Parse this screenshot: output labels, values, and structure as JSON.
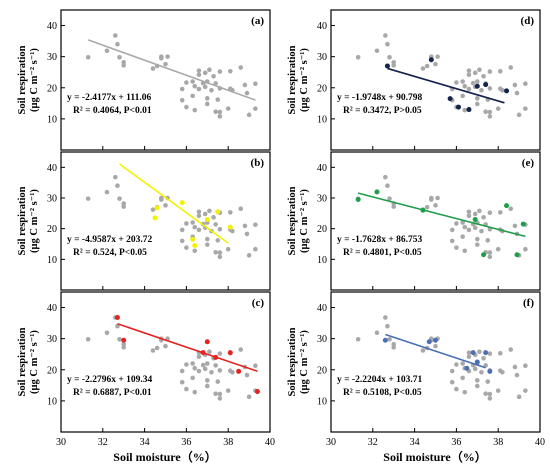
{
  "figure": {
    "x_axis_label": "Soil moisture（%）",
    "y_axis_label_line1": "Soil respiration",
    "y_axis_label_line2": "(μg C m⁻² s⁻¹)",
    "x_ticks": [
      "30",
      "32",
      "34",
      "36",
      "38",
      "40"
    ],
    "y_ticks": [
      "10",
      "20",
      "30",
      "40"
    ]
  },
  "chart_data": [
    {
      "type": "scatter",
      "panel": "(a)",
      "xlim": [
        30,
        40
      ],
      "ylim": [
        0,
        45
      ],
      "xlabel": "",
      "ylabel": "Soil respiration (μg C m⁻² s⁻¹)",
      "highlight_color": "#a9a9a9",
      "highlight_points": [],
      "fit": {
        "slope": -2.4177,
        "intercept": 111.06,
        "x_range": [
          31.3,
          39.3
        ],
        "color": "#a9a9a9"
      },
      "equation": "y = -2.4177x + 111.06",
      "r2_text": "R² = 0.4064, P<0.01"
    },
    {
      "type": "scatter",
      "panel": "(b)",
      "xlim": [
        30,
        40
      ],
      "ylim": [
        0,
        45
      ],
      "xlabel": "",
      "ylabel": "Soil respiration (μg C m⁻² s⁻¹)",
      "highlight_color": "#f2f200",
      "highlight_points": [
        [
          34.5,
          23.5
        ],
        [
          34.6,
          26.8
        ],
        [
          35.8,
          28.5
        ],
        [
          36.3,
          16.5
        ],
        [
          36.4,
          14.5
        ],
        [
          37.0,
          23.0
        ],
        [
          37.5,
          25.5
        ],
        [
          38.1,
          20.5
        ]
      ],
      "fit": {
        "slope": -4.9587,
        "intercept": 203.72,
        "x_range": [
          32.8,
          38.0
        ],
        "color": "#f2f200"
      },
      "equation": "y = -4.9587x + 203.72",
      "r2_text": "R² = 0.524, P<0.05"
    },
    {
      "type": "scatter",
      "panel": "(c)",
      "xlim": [
        30,
        40
      ],
      "ylim": [
        0,
        45
      ],
      "xlabel": "Soil moisture（%）",
      "ylabel": "Soil respiration (μg C m⁻² s⁻¹)",
      "highlight_color": "#e8211f",
      "highlight_points": [
        [
          32.7,
          36.8
        ],
        [
          33.0,
          29.5
        ],
        [
          36.8,
          25.5
        ],
        [
          37.0,
          29.0
        ],
        [
          37.4,
          24.0
        ],
        [
          38.1,
          25.5
        ],
        [
          38.5,
          19.5
        ],
        [
          39.4,
          13.0
        ]
      ],
      "fit": {
        "slope": -2.2796,
        "intercept": 109.34,
        "x_range": [
          32.7,
          39.4
        ],
        "color": "#e8211f"
      },
      "equation": "y = -2.2796x + 109.34",
      "r2_text": "R² = 0.6887, P<0.01"
    },
    {
      "type": "scatter",
      "panel": "(d)",
      "xlim": [
        30,
        40
      ],
      "ylim": [
        0,
        45
      ],
      "xlabel": "",
      "ylabel": "Soil respiration (μg C m⁻² s⁻¹)",
      "highlight_color": "#14224e",
      "highlight_points": [
        [
          32.7,
          27.0
        ],
        [
          34.8,
          29.0
        ],
        [
          35.7,
          16.5
        ],
        [
          36.1,
          13.8
        ],
        [
          36.6,
          13.0
        ],
        [
          37.0,
          20.5
        ],
        [
          37.4,
          21.0
        ],
        [
          38.4,
          19.0
        ]
      ],
      "fit": {
        "slope": -1.9748,
        "intercept": 90.798,
        "x_range": [
          32.7,
          38.3
        ],
        "color": "#14224e"
      },
      "equation": "y = -1.9748x + 90.798",
      "r2_text": "R² = 0.3472, P>0.05"
    },
    {
      "type": "scatter",
      "panel": "(e)",
      "xlim": [
        30,
        40
      ],
      "ylim": [
        0,
        45
      ],
      "xlabel": "",
      "ylabel": "Soil respiration (μg C m⁻² s⁻¹)",
      "highlight_color": "#1f9e4a",
      "highlight_points": [
        [
          31.3,
          29.5
        ],
        [
          32.2,
          32.0
        ],
        [
          34.4,
          26.0
        ],
        [
          36.9,
          23.0
        ],
        [
          37.3,
          11.5
        ],
        [
          38.4,
          27.5
        ],
        [
          38.9,
          11.5
        ],
        [
          39.2,
          21.5
        ]
      ],
      "fit": {
        "slope": -1.7628,
        "intercept": 86.753,
        "x_range": [
          31.3,
          39.3
        ],
        "color": "#1f9e4a"
      },
      "equation": "y = -1.7628x + 86.753",
      "r2_text": "R² = 0.4801, P<0.05"
    },
    {
      "type": "scatter",
      "panel": "(f)",
      "xlim": [
        30,
        40
      ],
      "ylim": [
        0,
        45
      ],
      "xlabel": "Soil moisture（%）",
      "ylabel": "Soil respiration (μg C m⁻² s⁻¹)",
      "highlight_color": "#4a6fb5",
      "highlight_points": [
        [
          32.6,
          29.5
        ],
        [
          34.7,
          29.0
        ],
        [
          35.0,
          29.5
        ],
        [
          36.5,
          20.5
        ],
        [
          36.8,
          25.5
        ],
        [
          37.0,
          22.5
        ],
        [
          37.4,
          25.5
        ],
        [
          37.6,
          19.5
        ]
      ],
      "fit": {
        "slope": -2.2204,
        "intercept": 103.71,
        "x_range": [
          32.6,
          37.4
        ],
        "color": "#4a6fb5"
      },
      "equation": "y = -2.2204x + 103.71",
      "r2_text": "R² = 0.5108, P<0.05"
    }
  ],
  "background_points": [
    [
      31.3,
      29.8
    ],
    [
      32.2,
      31.9
    ],
    [
      32.6,
      36.8
    ],
    [
      32.7,
      34.0
    ],
    [
      32.8,
      29.8
    ],
    [
      33.0,
      28.2
    ],
    [
      33.0,
      27.2
    ],
    [
      34.4,
      26.2
    ],
    [
      34.6,
      27.0
    ],
    [
      34.8,
      29.5
    ],
    [
      34.8,
      30.0
    ],
    [
      35.0,
      27.6
    ],
    [
      35.1,
      30.0
    ],
    [
      35.8,
      19.6
    ],
    [
      35.8,
      16.0
    ],
    [
      36.0,
      13.8
    ],
    [
      36.0,
      21.7
    ],
    [
      36.3,
      22.0
    ],
    [
      36.3,
      17.4
    ],
    [
      36.4,
      12.8
    ],
    [
      36.4,
      20.5
    ],
    [
      36.6,
      25.5
    ],
    [
      36.6,
      19.6
    ],
    [
      36.6,
      24.2
    ],
    [
      36.8,
      21.5
    ],
    [
      36.9,
      20.3
    ],
    [
      36.9,
      24.8
    ],
    [
      37.0,
      22.0
    ],
    [
      37.0,
      14.8
    ],
    [
      37.0,
      16.6
    ],
    [
      37.1,
      25.8
    ],
    [
      37.2,
      19.2
    ],
    [
      37.3,
      23.7
    ],
    [
      37.4,
      21.4
    ],
    [
      37.4,
      12.3
    ],
    [
      37.5,
      16.2
    ],
    [
      37.6,
      10.8
    ],
    [
      37.6,
      25.2
    ],
    [
      37.6,
      19.8
    ],
    [
      37.6,
      12.2
    ],
    [
      38.0,
      13.3
    ],
    [
      38.1,
      19.7
    ],
    [
      38.1,
      25.3
    ],
    [
      38.2,
      19.2
    ],
    [
      38.6,
      26.5
    ],
    [
      38.8,
      20.9
    ],
    [
      38.9,
      18.3
    ],
    [
      39.0,
      11.3
    ],
    [
      39.3,
      13.3
    ],
    [
      39.3,
      21.3
    ]
  ]
}
